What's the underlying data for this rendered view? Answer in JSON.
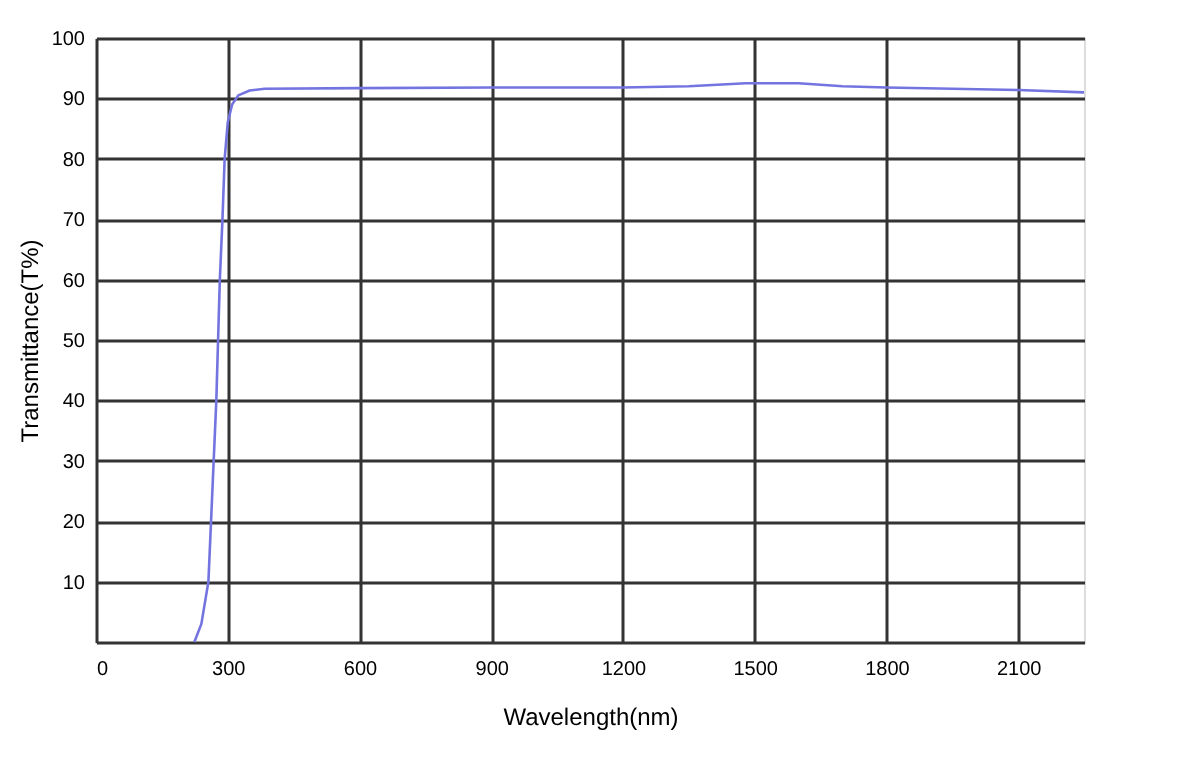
{
  "chart_data": {
    "type": "line",
    "xlabel": "Wavelength(nm)",
    "ylabel": "Transmittance(T%)",
    "x": [
      224,
      240,
      256,
      265,
      274,
      282,
      288,
      293,
      300,
      310,
      324,
      350,
      384,
      600,
      900,
      1200,
      1350,
      1480,
      1600,
      1700,
      1800,
      2100,
      2250
    ],
    "series": [
      {
        "color": "#7474e0",
        "values": [
          0,
          3,
          10,
          25,
          40,
          60,
          70,
          80,
          86,
          89,
          90.5,
          91.3,
          91.6,
          91.7,
          91.8,
          91.8,
          92.0,
          92.5,
          92.5,
          92.0,
          91.8,
          91.4,
          91.0
        ]
      }
    ],
    "xlim": [
      0,
      2250
    ],
    "xticks": [
      0,
      300,
      600,
      900,
      1200,
      1500,
      1800,
      2100
    ],
    "ylim": [
      0,
      100
    ],
    "yticks": [
      {
        "value": 0,
        "label": null
      },
      10,
      20,
      30,
      40,
      50,
      60,
      70,
      80,
      90,
      100
    ],
    "grid": true,
    "marker": "none",
    "line_style": "solid"
  }
}
